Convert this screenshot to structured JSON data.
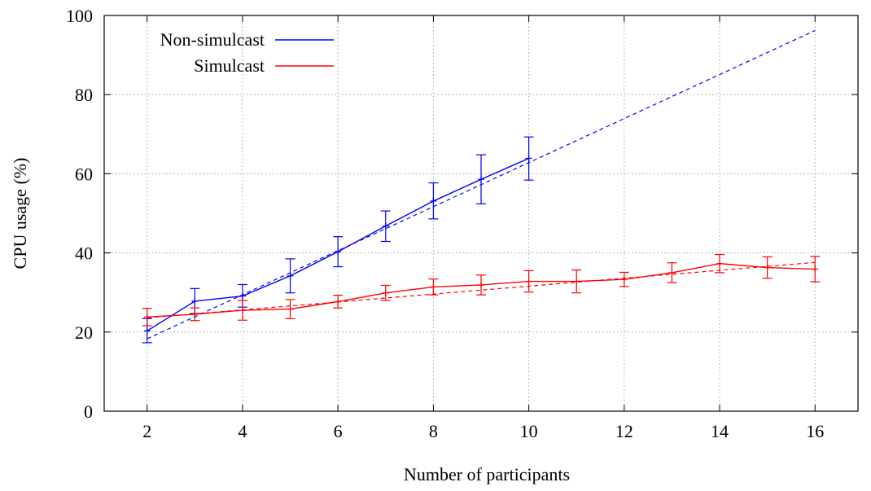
{
  "chart_data": {
    "type": "line",
    "title": "",
    "xlabel": "Number of participants",
    "ylabel": "CPU usage (%)",
    "xlim": [
      1.1,
      16.9
    ],
    "ylim": [
      0,
      100
    ],
    "xticks": [
      2,
      4,
      6,
      8,
      10,
      12,
      14,
      16
    ],
    "yticks": [
      0,
      20,
      40,
      60,
      80,
      100
    ],
    "grid": true,
    "legend_position": "top-left",
    "series": [
      {
        "name": "Non-simulcast",
        "color": "#0000ff",
        "x": [
          2,
          3,
          4,
          5,
          6,
          7,
          8,
          9,
          10
        ],
        "y": [
          20.3,
          27.8,
          29.1,
          34.2,
          40.3,
          46.8,
          53.1,
          58.6,
          63.9
        ],
        "error_low": [
          17.3,
          24.7,
          26.3,
          29.9,
          36.5,
          42.9,
          48.6,
          52.4,
          58.4
        ],
        "error_high": [
          23.4,
          31.0,
          32.0,
          38.5,
          44.1,
          50.6,
          57.7,
          64.8,
          69.3
        ],
        "fit": {
          "x": [
            2,
            16
          ],
          "y": [
            18.3,
            96.2
          ]
        }
      },
      {
        "name": "Simulcast",
        "color": "#ff0000",
        "x": [
          2,
          3,
          4,
          5,
          6,
          7,
          8,
          9,
          10,
          11,
          12,
          13,
          14,
          15,
          16
        ],
        "y": [
          23.8,
          24.5,
          25.5,
          25.8,
          27.7,
          29.9,
          31.4,
          31.9,
          32.8,
          32.8,
          33.3,
          35.0,
          37.3,
          36.3,
          35.9
        ],
        "error_low": [
          21.6,
          22.9,
          23.0,
          23.4,
          26.1,
          28.0,
          29.4,
          29.4,
          30.1,
          29.9,
          31.5,
          32.5,
          35.0,
          33.6,
          32.7
        ],
        "error_high": [
          26.0,
          26.1,
          28.0,
          28.2,
          29.3,
          31.8,
          33.4,
          34.4,
          35.5,
          35.7,
          35.1,
          37.5,
          39.6,
          39.0,
          39.1
        ],
        "fit": {
          "x": [
            2,
            16
          ],
          "y": [
            23.6,
            37.6
          ]
        }
      }
    ]
  }
}
